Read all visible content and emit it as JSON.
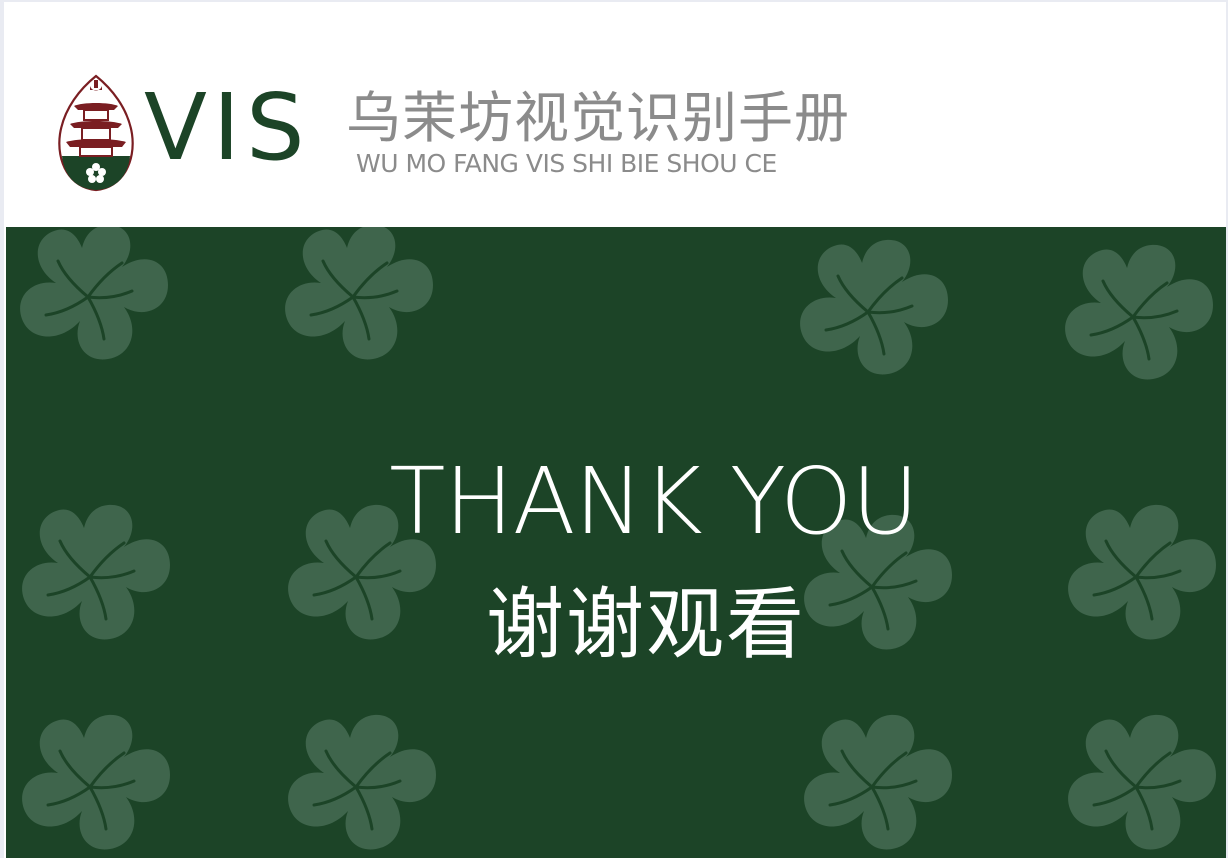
{
  "header": {
    "logo_mark": "VIS",
    "title_cn": "乌茉坊视觉识别手册",
    "title_pinyin": "WU MO FANG VIS SHI BIE SHOU CE",
    "emblem_icon": "pagoda-flower-emblem-icon"
  },
  "panel": {
    "thanks_en": "THANK YOU",
    "thanks_cn": "谢谢观看",
    "pattern_icon": "hibiscus-flower-icon"
  },
  "colors": {
    "brand_green": "#1c4427",
    "flower_tint": "#3f654c",
    "accent_red": "#7a1e22",
    "text_gray": "#8b8b8b",
    "white": "#ffffff"
  }
}
